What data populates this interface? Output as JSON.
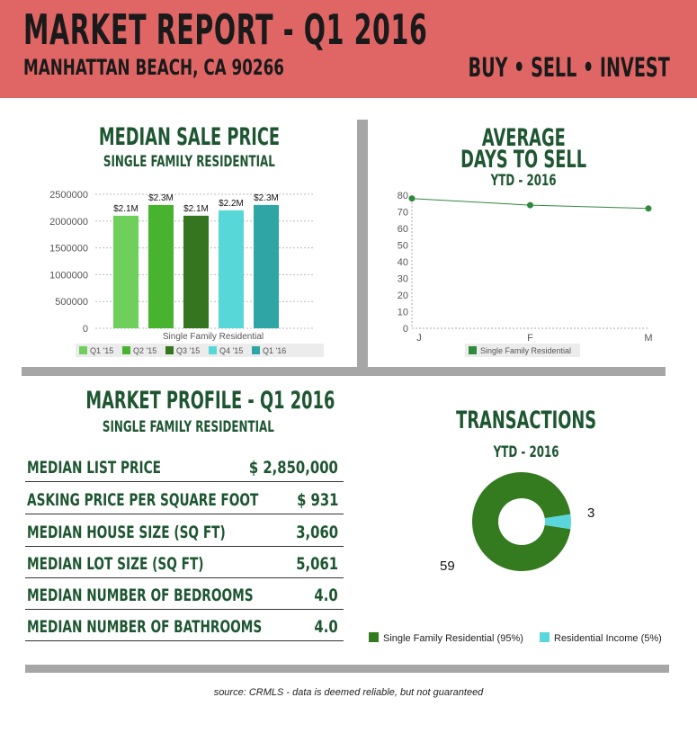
{
  "header": {
    "title": "MARKET REPORT - Q1 2016",
    "subtitle": "MANHATTAN BEACH, CA 90266",
    "tagline": "BUY • SELL • INVEST"
  },
  "colors": {
    "header_bg": "#e06666",
    "heading_green": "#1e5631",
    "divider_gray": "#a6a6a6",
    "bar_colors": [
      "#6ecf5a",
      "#47b32e",
      "#35751f",
      "#58d7d9",
      "#2fa6a6"
    ],
    "line_green": "#2f8a3e",
    "donut_colors": [
      "#347a1f",
      "#5ad6dc"
    ]
  },
  "sale_price": {
    "title": "MEDIAN SALE PRICE",
    "subtitle": "SINGLE FAMILY RESIDENTIAL"
  },
  "days_to_sell": {
    "title_line1": "AVERAGE",
    "title_line2": "DAYS TO SELL",
    "subtitle": "YTD - 2016"
  },
  "profile": {
    "title": "MARKET PROFILE - Q1 2016",
    "subtitle": "SINGLE FAMILY RESIDENTIAL",
    "rows": [
      {
        "label": "MEDIAN LIST PRICE",
        "value": "$ 2,850,000"
      },
      {
        "label": "ASKING PRICE PER SQUARE FOOT",
        "value": "$  931"
      },
      {
        "label": "MEDIAN HOUSE SIZE (SQ FT)",
        "value": "3,060"
      },
      {
        "label": "MEDIAN LOT SIZE (SQ FT)",
        "value": "5,061"
      },
      {
        "label": "MEDIAN NUMBER OF BEDROOMS",
        "value": "4.0"
      },
      {
        "label": "MEDIAN NUMBER OF BATHROOMS",
        "value": "4.0"
      }
    ]
  },
  "transactions": {
    "title": "TRANSACTIONS",
    "subtitle": "YTD - 2016"
  },
  "source": "source:  CRMLS - data is deemed reliable, but not guaranteed",
  "chart_data": [
    {
      "type": "bar",
      "xlabel": "Single Family Residential",
      "ylim": [
        0,
        2500000
      ],
      "yticks": [
        "2500000",
        "2000000",
        "1500000",
        "1000000",
        "500000",
        "0"
      ],
      "series": [
        {
          "name": "Q1 '15",
          "value": 2100000,
          "label": "$2.1M"
        },
        {
          "name": "Q2 '15",
          "value": 2300000,
          "label": "$2.3M"
        },
        {
          "name": "Q3 '15",
          "value": 2100000,
          "label": "$2.1M"
        },
        {
          "name": "Q4 '15",
          "value": 2200000,
          "label": "$2.2M"
        },
        {
          "name": "Q1 '16",
          "value": 2300000,
          "label": "$2.3M"
        }
      ],
      "grid": true,
      "legend": "bottom"
    },
    {
      "type": "line",
      "categories": [
        "J",
        "F",
        "M"
      ],
      "series": [
        {
          "name": "Single Family Residential",
          "values": [
            78,
            74,
            72
          ]
        }
      ],
      "ylim": [
        0,
        80
      ],
      "yticks": [
        "80",
        "70",
        "60",
        "50",
        "40",
        "30",
        "20",
        "10",
        "0"
      ],
      "grid": false,
      "legend": "bottom"
    },
    {
      "type": "pie",
      "donut": true,
      "slices": [
        {
          "name": "Single Family Residential (95%)",
          "value": 59,
          "label": "59"
        },
        {
          "name": "Residential Income (5%)",
          "value": 3,
          "label": "3"
        }
      ],
      "legend": "bottom"
    }
  ]
}
